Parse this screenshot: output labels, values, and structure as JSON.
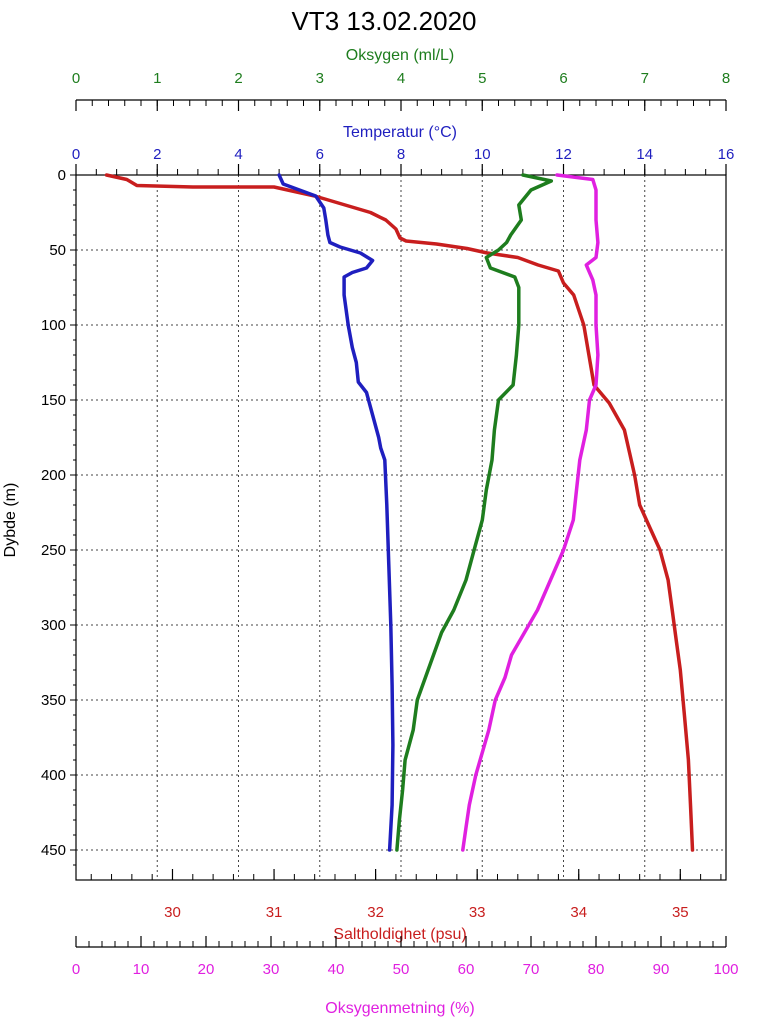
{
  "chart_data": {
    "type": "line",
    "title": "VT3 13.02.2020",
    "grid": true,
    "y_axis": {
      "label": "Dybde (m)",
      "range": [
        0,
        470
      ],
      "inverted": true,
      "ticks": [
        0,
        50,
        100,
        150,
        200,
        250,
        300,
        350,
        400,
        450
      ]
    },
    "axes": {
      "oxygen": {
        "label": "Oksygen (ml/L)",
        "color": "#1e7d1e",
        "position": "top-outer",
        "range": [
          0,
          8
        ],
        "ticks": [
          0,
          1,
          2,
          3,
          4,
          5,
          6,
          7,
          8
        ]
      },
      "temperature": {
        "label": "Temperatur (°C)",
        "color": "#1f1fbf",
        "position": "top-inner",
        "range": [
          0,
          16
        ],
        "ticks": [
          0,
          2,
          4,
          6,
          8,
          10,
          12,
          14,
          16
        ]
      },
      "salinity": {
        "label": "Saltholdighet (psu)",
        "color": "#c81e1e",
        "position": "bottom-inner",
        "range": [
          29.05,
          35.45
        ],
        "ticks": [
          30,
          31,
          32,
          33,
          34,
          35
        ]
      },
      "saturation": {
        "label": "Oksygenmetning (%)",
        "color": "#e020e0",
        "position": "bottom-outer",
        "range": [
          0,
          100
        ],
        "ticks": [
          0,
          10,
          20,
          30,
          40,
          50,
          60,
          70,
          80,
          90,
          100
        ]
      }
    },
    "series": [
      {
        "axis": "salinity",
        "color": "#c81e1e",
        "points": [
          [
            29.35,
            0
          ],
          [
            29.55,
            3
          ],
          [
            29.65,
            7
          ],
          [
            30.2,
            8
          ],
          [
            31.0,
            8
          ],
          [
            31.4,
            14
          ],
          [
            31.6,
            18
          ],
          [
            31.75,
            21
          ],
          [
            31.95,
            25
          ],
          [
            32.1,
            30
          ],
          [
            32.2,
            36
          ],
          [
            32.24,
            42
          ],
          [
            32.3,
            44
          ],
          [
            32.6,
            46
          ],
          [
            32.9,
            49
          ],
          [
            33.1,
            52
          ],
          [
            33.4,
            55
          ],
          [
            33.6,
            60
          ],
          [
            33.8,
            64
          ],
          [
            33.85,
            72
          ],
          [
            33.95,
            80
          ],
          [
            34.05,
            100
          ],
          [
            34.1,
            120
          ],
          [
            34.15,
            140
          ],
          [
            34.3,
            152
          ],
          [
            34.45,
            170
          ],
          [
            34.5,
            185
          ],
          [
            34.55,
            200
          ],
          [
            34.6,
            220
          ],
          [
            34.7,
            235
          ],
          [
            34.8,
            250
          ],
          [
            34.88,
            270
          ],
          [
            34.92,
            290
          ],
          [
            34.96,
            310
          ],
          [
            35.0,
            330
          ],
          [
            35.04,
            360
          ],
          [
            35.08,
            390
          ],
          [
            35.1,
            420
          ],
          [
            35.12,
            450
          ]
        ]
      },
      {
        "axis": "temperature",
        "color": "#1f1fbf",
        "points": [
          [
            5.0,
            0
          ],
          [
            5.1,
            6
          ],
          [
            5.5,
            10
          ],
          [
            5.9,
            14
          ],
          [
            6.1,
            22
          ],
          [
            6.15,
            30
          ],
          [
            6.2,
            40
          ],
          [
            6.25,
            45
          ],
          [
            6.5,
            48
          ],
          [
            7.0,
            52
          ],
          [
            7.3,
            57
          ],
          [
            7.15,
            62
          ],
          [
            6.8,
            65
          ],
          [
            6.6,
            68
          ],
          [
            6.6,
            80
          ],
          [
            6.7,
            100
          ],
          [
            6.8,
            115
          ],
          [
            6.9,
            125
          ],
          [
            6.95,
            138
          ],
          [
            7.15,
            145
          ],
          [
            7.3,
            160
          ],
          [
            7.45,
            175
          ],
          [
            7.5,
            182
          ],
          [
            7.6,
            190
          ],
          [
            7.65,
            220
          ],
          [
            7.7,
            260
          ],
          [
            7.75,
            300
          ],
          [
            7.78,
            340
          ],
          [
            7.8,
            380
          ],
          [
            7.78,
            420
          ],
          [
            7.72,
            450
          ]
        ]
      },
      {
        "axis": "oxygen",
        "color": "#1e7d1e",
        "points": [
          [
            5.5,
            0
          ],
          [
            5.85,
            4
          ],
          [
            5.6,
            10
          ],
          [
            5.45,
            20
          ],
          [
            5.48,
            30
          ],
          [
            5.35,
            40
          ],
          [
            5.3,
            45
          ],
          [
            5.2,
            50
          ],
          [
            5.05,
            55
          ],
          [
            5.1,
            62
          ],
          [
            5.4,
            68
          ],
          [
            5.45,
            75
          ],
          [
            5.45,
            100
          ],
          [
            5.42,
            120
          ],
          [
            5.38,
            140
          ],
          [
            5.2,
            150
          ],
          [
            5.15,
            170
          ],
          [
            5.12,
            190
          ],
          [
            5.05,
            210
          ],
          [
            5.0,
            230
          ],
          [
            4.9,
            250
          ],
          [
            4.8,
            270
          ],
          [
            4.65,
            290
          ],
          [
            4.5,
            305
          ],
          [
            4.4,
            320
          ],
          [
            4.3,
            335
          ],
          [
            4.2,
            350
          ],
          [
            4.15,
            370
          ],
          [
            4.05,
            390
          ],
          [
            4.02,
            410
          ],
          [
            3.98,
            430
          ],
          [
            3.95,
            450
          ]
        ]
      },
      {
        "axis": "saturation",
        "color": "#e020e0",
        "points": [
          [
            74.0,
            0
          ],
          [
            79.5,
            3
          ],
          [
            80.0,
            10
          ],
          [
            80.0,
            30
          ],
          [
            80.3,
            45
          ],
          [
            80.0,
            55
          ],
          [
            78.5,
            60
          ],
          [
            79.5,
            70
          ],
          [
            80.0,
            80
          ],
          [
            80.0,
            100
          ],
          [
            80.3,
            120
          ],
          [
            80.0,
            140
          ],
          [
            79.0,
            150
          ],
          [
            78.5,
            170
          ],
          [
            77.5,
            190
          ],
          [
            77.0,
            210
          ],
          [
            76.5,
            230
          ],
          [
            75.0,
            250
          ],
          [
            73.0,
            270
          ],
          [
            71.0,
            290
          ],
          [
            69.0,
            305
          ],
          [
            67.0,
            320
          ],
          [
            66.0,
            335
          ],
          [
            64.5,
            350
          ],
          [
            63.5,
            370
          ],
          [
            62.5,
            385
          ],
          [
            61.5,
            400
          ],
          [
            60.5,
            420
          ],
          [
            60.0,
            435
          ],
          [
            59.5,
            450
          ]
        ]
      }
    ]
  }
}
